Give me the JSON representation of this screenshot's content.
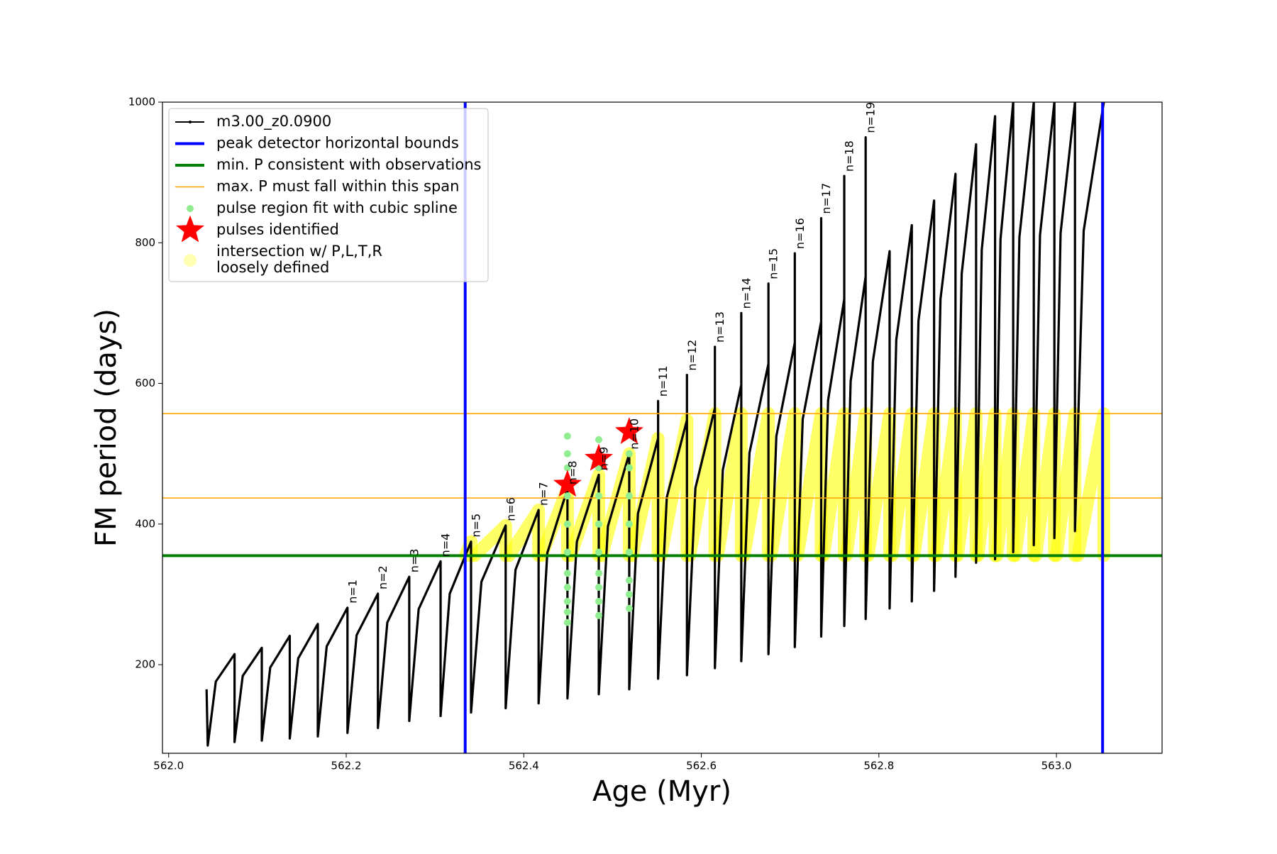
{
  "chart_data": {
    "type": "line",
    "xlabel": "Age (Myr)",
    "ylabel": "FM period (days)",
    "xlim": [
      561.993,
      563.119
    ],
    "ylim": [
      74,
      1000
    ],
    "xticks": [
      {
        "value": 562.0,
        "label": "562.0"
      },
      562.2,
      562.4,
      562.6,
      562.8,
      {
        "value": 563.0,
        "label": "563.0"
      }
    ],
    "yticks": [
      200,
      400,
      600,
      800,
      1000
    ],
    "legend": "upper left",
    "series": [
      {
        "name": "m3.00_z0.0900",
        "color": "#000000",
        "type": "line",
        "x": [
          562.0427,
          562.044,
          562.0531,
          562.0742,
          562.0742,
          562.0834,
          562.1049,
          562.1049,
          562.1144,
          562.1364,
          562.1364,
          562.1459,
          562.168,
          562.168,
          562.178,
          562.2014,
          562.2014,
          562.2117,
          562.2357,
          562.2357,
          562.2463,
          562.271,
          562.271,
          562.2816,
          562.3063,
          562.3063,
          562.3166,
          562.3406,
          562.3406,
          562.3523,
          562.3796,
          562.3796,
          562.3907,
          562.4167,
          562.4167,
          562.4265,
          562.4492,
          562.4492,
          562.4598,
          562.4845,
          562.4845,
          562.4948,
          562.5188,
          562.5188,
          562.5286,
          562.5513,
          562.5513,
          562.5513,
          562.5611,
          562.5838,
          562.5838,
          562.5838,
          562.5933,
          562.6153,
          562.6153,
          562.6153,
          562.6242,
          562.645,
          562.645,
          562.645,
          562.6542,
          562.6756,
          562.6756,
          562.6756,
          562.6845,
          562.7053,
          562.7053,
          562.7053,
          562.7142,
          562.735,
          562.735,
          562.735,
          562.7428,
          562.761,
          562.761,
          562.761,
          562.7682,
          562.7851,
          562.7851,
          562.7851,
          562.7932,
          562.8121,
          562.8121,
          562.8196,
          562.8371,
          562.8371,
          562.8446,
          562.8622,
          562.8622,
          562.8694,
          562.8863,
          562.8863,
          562.8933,
          562.9095,
          562.9095,
          562.9159,
          562.9309,
          562.9309,
          562.937,
          562.9513,
          562.9513,
          562.9583,
          562.9745,
          562.9745,
          562.9815,
          562.9977,
          562.9977,
          563.0047,
          563.0209,
          563.0209,
          563.0307,
          563.0534
        ],
        "values": [
          165,
          85,
          176,
          215,
          90,
          184,
          224,
          92,
          196,
          241,
          95,
          209,
          258,
          98,
          226,
          281,
          103,
          242,
          301,
          110,
          260,
          325,
          120,
          279,
          347,
          127,
          301,
          375,
          132,
          318,
          398,
          138,
          335,
          420,
          145,
          359,
          450,
          152,
          375,
          470,
          158,
          397,
          500,
          165,
          415,
          522,
          575,
          180,
          438,
          548,
          612,
          185,
          451,
          565,
          652,
          195,
          477,
          598,
          700,
          205,
          501,
          628,
          742,
          215,
          525,
          658,
          785,
          225,
          549,
          688,
          835,
          240,
          576,
          720,
          895,
          255,
          603,
          752,
          950,
          265,
          631,
          788,
          280,
          662,
          825,
          290,
          689,
          860,
          305,
          720,
          898,
          325,
          756,
          940,
          345,
          790,
          980,
          350,
          805,
          1000,
          360,
          808,
          1000,
          370,
          811,
          1000,
          380,
          814,
          1000,
          390,
          817,
          1000
        ]
      },
      {
        "name": "pulse region fit with cubic spline",
        "color": "#90ee90",
        "type": "scatter",
        "x": [
          562.4492,
          562.4492,
          562.4492,
          562.4492,
          562.4492,
          562.4492,
          562.4492,
          562.4492,
          562.4492,
          562.4492,
          562.4492,
          562.4845,
          562.4845,
          562.4845,
          562.4845,
          562.4845,
          562.4845,
          562.4845,
          562.4845,
          562.4845,
          562.5188,
          562.5188,
          562.5188,
          562.5188,
          562.5188,
          562.5188,
          562.5188,
          562.5188
        ],
        "values": [
          260,
          275,
          290,
          310,
          330,
          360,
          400,
          440,
          480,
          500,
          525,
          270,
          290,
          310,
          330,
          360,
          400,
          440,
          480,
          520,
          280,
          300,
          320,
          360,
          400,
          440,
          480,
          500
        ]
      },
      {
        "name": "pulses identified",
        "color": "#ff0000",
        "type": "star",
        "x": [
          562.4492,
          562.4845,
          562.5188
        ],
        "values": [
          456,
          493,
          531
        ]
      },
      {
        "name": "intersection w/ P,L,T,R\nloosely defined",
        "color": "#ffff00",
        "type": "band",
        "x": [
          562.334,
          562.3406,
          562.3406,
          null,
          562.3445,
          562.3796,
          562.3796,
          null,
          562.3833,
          562.4167,
          562.4167,
          null,
          562.42,
          562.4492,
          562.4492,
          null,
          562.4527,
          562.4845,
          562.4845,
          null,
          562.4879,
          562.5188,
          562.5188,
          null,
          562.5221,
          562.5513,
          562.5513,
          null,
          562.5546,
          562.5838,
          562.5838,
          null,
          562.587,
          562.6153,
          562.6153,
          null,
          562.6183,
          562.645,
          562.645,
          null,
          562.6481,
          562.6756,
          562.6756,
          null,
          562.6786,
          562.7053,
          562.7053,
          null,
          562.7083,
          562.735,
          562.735,
          null,
          562.7376,
          562.761,
          562.761,
          null,
          562.7634,
          562.7851,
          562.7851,
          null,
          562.7878,
          562.8121,
          562.8121,
          null,
          562.8146,
          562.8371,
          562.8371,
          null,
          562.8396,
          562.8622,
          562.8622,
          null,
          562.8646,
          562.8863,
          562.8863,
          null,
          562.8886,
          562.9095,
          562.9095,
          null,
          562.9116,
          562.9309,
          562.9309,
          null,
          562.9329,
          562.9513,
          562.9513,
          null,
          562.9536,
          562.9745,
          562.9745,
          null,
          562.9768,
          562.9977,
          562.9977,
          null,
          563.0,
          563.0209,
          563.0209,
          null,
          563.0242,
          563.0534,
          563.0534
        ],
        "values": [
          355,
          375,
          355,
          null,
          355,
          398,
          355,
          null,
          355,
          420,
          355,
          null,
          355,
          450,
          355,
          null,
          355,
          470,
          355,
          null,
          355,
          500,
          355,
          null,
          355,
          522,
          355,
          null,
          355,
          548,
          355,
          null,
          355,
          557,
          355,
          null,
          355,
          557,
          355,
          null,
          355,
          557,
          355,
          null,
          355,
          557,
          355,
          null,
          355,
          557,
          355,
          null,
          355,
          557,
          355,
          null,
          355,
          557,
          355,
          null,
          355,
          557,
          355,
          null,
          355,
          557,
          355,
          null,
          355,
          557,
          355,
          null,
          355,
          557,
          355,
          null,
          355,
          557,
          355,
          null,
          355,
          557,
          355,
          null,
          355,
          557,
          355,
          null,
          355,
          557,
          355,
          null,
          355,
          557,
          355,
          null,
          355,
          557,
          355,
          null,
          355,
          557,
          355
        ]
      }
    ],
    "vlines": {
      "name": "peak detector horizontal bounds",
      "color": "#0000ff",
      "values": [
        562.334,
        563.052
      ]
    },
    "hlines": [
      {
        "name": "min. P consistent with observations",
        "color": "#008000",
        "values": [
          355
        ]
      },
      {
        "name": "max. P must fall within this span",
        "color": "#ffa500",
        "values": [
          437,
          557
        ]
      }
    ],
    "peak_labels": [
      "n=1",
      "n=2",
      "n=3",
      "n=4",
      "n=5",
      "n=6",
      "n=7",
      "n=8",
      "n=9",
      "n=10",
      "n=11",
      "n=12",
      "n=13",
      "n=14",
      "n=15",
      "n=16",
      "n=17",
      "n=18",
      "n=19"
    ]
  }
}
